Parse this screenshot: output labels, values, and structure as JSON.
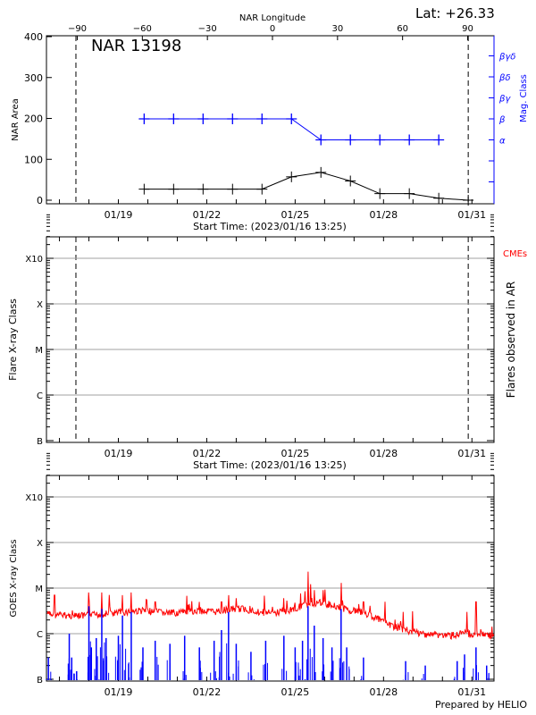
{
  "colors": {
    "area": "#000000",
    "mag_class": "#0000ff",
    "goes_long": "#ff0000",
    "goes_short": "#0000ff",
    "cme": "#ff0000",
    "grid": "#a0a0a0"
  },
  "chart_data": [
    {
      "type": "line",
      "title": "NAR 13198",
      "annotation": "Lat: +26.33",
      "xlabel": "Start Time: (2023/01/16 13:25)",
      "top_xlabel": "NAR Longitude",
      "ylabel": "NAR Area",
      "y2label": "Mag. Class",
      "xrange": [
        "2023-01-16T13:25",
        "2023-01-31T18:00"
      ],
      "ylim": [
        0,
        400
      ],
      "yticks": [
        "0",
        "100",
        "200",
        "300",
        "400"
      ],
      "xticks": [
        "01/19",
        "01/22",
        "01/25",
        "01/28",
        "01/31"
      ],
      "top_xticks": [
        "-90",
        "-60",
        "-30",
        "0",
        "30",
        "60",
        "90"
      ],
      "y2_levels": [
        "",
        "",
        "α",
        "β",
        "βγ",
        "βδ",
        "βγδ"
      ],
      "limb_lines": [
        "2023-01-17T13:25",
        "2023-01-30T21:00"
      ],
      "x": [
        "2023-01-19T21:00",
        "2023-01-20T21:00",
        "2023-01-21T21:00",
        "2023-01-22T21:00",
        "2023-01-23T21:00",
        "2023-01-24T21:00",
        "2023-01-25T21:00",
        "2023-01-26T21:00",
        "2023-01-27T21:00",
        "2023-01-28T21:00",
        "2023-01-29T21:00",
        "2023-01-30T21:00"
      ],
      "series": [
        {
          "name": "NAR Area",
          "values": [
            27,
            27,
            27,
            27,
            27,
            57,
            68,
            47,
            16,
            16,
            5,
            0
          ]
        },
        {
          "name": "Mag. Class",
          "values": [
            "β",
            "β",
            "β",
            "β",
            "β",
            "β",
            "α",
            "α",
            "α",
            "α",
            "α",
            null
          ]
        }
      ]
    },
    {
      "type": "scatter",
      "xlabel": "Start Time: (2023/01/16 13:25)",
      "ylabel": "Flare X-ray Class",
      "y2label": "Flares observed in AR",
      "legend": "CMEs",
      "yticks": [
        "B",
        "C",
        "M",
        "X",
        "X10"
      ],
      "xticks": [
        "01/19",
        "01/22",
        "01/25",
        "01/28",
        "01/31"
      ],
      "limb_lines": [
        "2023-01-17T13:25",
        "2023-01-30T21:00"
      ],
      "grid": true,
      "points": []
    },
    {
      "type": "line",
      "ylabel": "GOES X-ray Class",
      "yticks": [
        "B",
        "C",
        "M",
        "X",
        "X10"
      ],
      "xticks": [
        "01/19",
        "01/22",
        "01/25",
        "01/28",
        "01/31"
      ],
      "yscale": "log",
      "grid": true,
      "footer": "Prepared by HELIO",
      "long_channel": {
        "background": [
          [
            "2023-01-16T14:00",
            "C2.7"
          ],
          [
            "2023-01-16T18:00",
            "C2.6"
          ],
          [
            "2023-01-17T06:00",
            "C2.5"
          ],
          [
            "2023-01-17T18:00",
            "C2.4"
          ],
          [
            "2023-01-18T06:00",
            "C2.6"
          ],
          [
            "2023-01-18T18:00",
            "C2.8"
          ],
          [
            "2023-01-19T06:00",
            "C3.0"
          ],
          [
            "2023-01-19T18:00",
            "C3.2"
          ],
          [
            "2023-01-20T06:00",
            "C3.0"
          ],
          [
            "2023-01-20T18:00",
            "C2.8"
          ],
          [
            "2023-01-21T06:00",
            "C3.0"
          ],
          [
            "2023-01-21T18:00",
            "C3.2"
          ],
          [
            "2023-01-22T06:00",
            "C3.0"
          ],
          [
            "2023-01-22T18:00",
            "C3.4"
          ],
          [
            "2023-01-23T06:00",
            "C3.5"
          ],
          [
            "2023-01-23T18:00",
            "C3.0"
          ],
          [
            "2023-01-24T06:00",
            "C2.8"
          ],
          [
            "2023-01-24T18:00",
            "C3.2"
          ],
          [
            "2023-01-25T06:00",
            "C4.0"
          ],
          [
            "2023-01-25T18:00",
            "C4.8"
          ],
          [
            "2023-01-26T06:00",
            "C4.3"
          ],
          [
            "2023-01-26T18:00",
            "C3.4"
          ],
          [
            "2023-01-27T06:00",
            "C3.0"
          ],
          [
            "2023-01-27T18:00",
            "C2.2"
          ],
          [
            "2023-01-28T06:00",
            "C1.5"
          ],
          [
            "2023-01-28T18:00",
            "C1.2"
          ],
          [
            "2023-01-29T06:00",
            "C1.0"
          ],
          [
            "2023-01-29T18:00",
            "C0.95"
          ],
          [
            "2023-01-30T06:00",
            "C0.9"
          ],
          [
            "2023-01-30T18:00",
            "C1.0"
          ],
          [
            "2023-01-31T06:00",
            "C1.0"
          ],
          [
            "2023-01-31T18:00",
            "C0.9"
          ]
        ],
        "peaks": [
          [
            "2023-01-16T20:00",
            "C7"
          ],
          [
            "2023-01-17T23:40",
            "M0.8"
          ],
          [
            "2023-01-18T10:30",
            "M0.8"
          ],
          [
            "2023-01-19T03:20",
            "C7"
          ],
          [
            "2023-01-19T10:30",
            "M0.8"
          ],
          [
            "2023-01-20T06:00",
            "C5"
          ],
          [
            "2023-01-21T18:00",
            "C5"
          ],
          [
            "2023-01-22T12:00",
            "M0.5"
          ],
          [
            "2023-01-22T17:45",
            "M0.7"
          ],
          [
            "2023-01-23T00:00",
            "C6"
          ],
          [
            "2023-01-24T14:50",
            "C6"
          ],
          [
            "2023-01-25T10:30",
            "M2.3"
          ],
          [
            "2023-01-25T15:35",
            "M0.9"
          ],
          [
            "2023-01-25T22:45",
            "M0.9"
          ],
          [
            "2023-01-26T13:25",
            "M1.3"
          ],
          [
            "2023-01-27T07:40",
            "C5"
          ],
          [
            "2023-01-28T16:00",
            "C3"
          ],
          [
            "2023-01-30T20:00",
            "C3"
          ],
          [
            "2023-01-31T03:20",
            "C5"
          ]
        ]
      },
      "short_channel": [
        [
          "2023-01-16T15:00",
          "B3"
        ],
        [
          "2023-01-17T08:00",
          "C1.0"
        ],
        [
          "2023-01-17T10:00",
          "B3"
        ],
        [
          "2023-01-17T14:00",
          "B1.5"
        ],
        [
          "2023-01-18T00:00",
          "C4"
        ],
        [
          "2023-01-18T02:00",
          "B5"
        ],
        [
          "2023-01-18T06:00",
          "B8"
        ],
        [
          "2023-01-18T10:30",
          "C3.5"
        ],
        [
          "2023-01-18T14:00",
          "B8"
        ],
        [
          "2023-01-19T00:00",
          "B9"
        ],
        [
          "2023-01-19T03:20",
          "C2.5"
        ],
        [
          "2023-01-19T10:30",
          "C3"
        ],
        [
          "2023-01-19T20:00",
          "B5"
        ],
        [
          "2023-01-20T06:00",
          "B7"
        ],
        [
          "2023-01-20T18:00",
          "B6"
        ],
        [
          "2023-01-21T06:00",
          "B9"
        ],
        [
          "2023-01-21T18:00",
          "B5"
        ],
        [
          "2023-01-22T06:00",
          "B7"
        ],
        [
          "2023-01-22T12:00",
          "C1.2"
        ],
        [
          "2023-01-22T17:45",
          "C3"
        ],
        [
          "2023-01-23T00:00",
          "B6"
        ],
        [
          "2023-01-23T12:00",
          "B4"
        ],
        [
          "2023-01-24T00:00",
          "B7"
        ],
        [
          "2023-01-24T14:50",
          "B9"
        ],
        [
          "2023-01-25T00:00",
          "B5"
        ],
        [
          "2023-01-25T06:00",
          "B7"
        ],
        [
          "2023-01-25T10:30",
          "C4"
        ],
        [
          "2023-01-25T15:35",
          "C1.5"
        ],
        [
          "2023-01-25T22:45",
          "B8"
        ],
        [
          "2023-01-26T06:00",
          "B5"
        ],
        [
          "2023-01-26T13:25",
          "C3.5"
        ],
        [
          "2023-01-26T18:00",
          "B5"
        ],
        [
          "2023-01-27T07:40",
          "B3"
        ],
        [
          "2023-01-28T18:00",
          "B2.5"
        ],
        [
          "2023-01-29T10:00",
          "B2"
        ],
        [
          "2023-01-30T12:00",
          "B2.5"
        ],
        [
          "2023-01-30T18:00",
          "B3.5"
        ],
        [
          "2023-01-31T03:20",
          "B5"
        ],
        [
          "2023-01-31T12:00",
          "B2"
        ]
      ]
    }
  ]
}
